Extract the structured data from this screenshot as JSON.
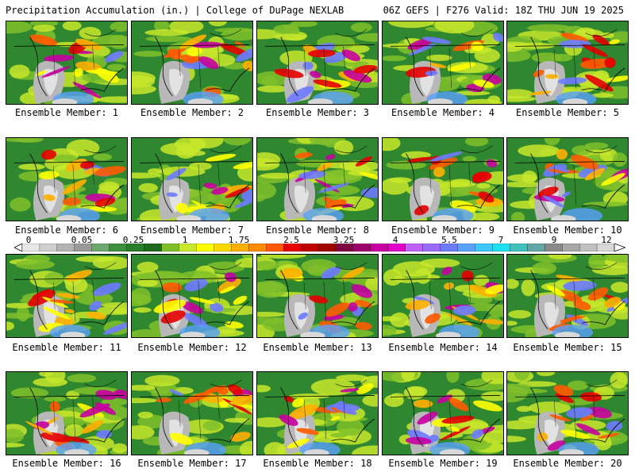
{
  "header": {
    "left_title": "Precipitation Accumulation (in.) | College of DuPage NEXLAB",
    "right_title": "06Z GEFS | F276 Valid: 18Z THU JUN 19 2025"
  },
  "members": [
    "Ensemble Member: 1",
    "Ensemble Member: 2",
    "Ensemble Member: 3",
    "Ensemble Member: 4",
    "Ensemble Member: 5",
    "Ensemble Member: 6",
    "Ensemble Member: 7",
    "Ensemble Member: 8",
    "Ensemble Member: 9",
    "Ensemble Member: 10",
    "Ensemble Member: 11",
    "Ensemble Member: 12",
    "Ensemble Member: 13",
    "Ensemble Member: 14",
    "Ensemble Member: 15",
    "Ensemble Member: 16",
    "Ensemble Member: 17",
    "Ensemble Member: 18",
    "Ensemble Member: 19",
    "Ensemble Member: 20"
  ],
  "legend": {
    "tick_labels": [
      "0",
      "0.05",
      "0.25",
      "1",
      "1.75",
      "2.5",
      "3.25",
      "4",
      "5.5",
      "7",
      "9",
      "12"
    ],
    "colors": [
      "#e8e8e8",
      "#cfcfcf",
      "#b4b4b4",
      "#9a9a9a",
      "#6fa86f",
      "#3f8f3f",
      "#2a7d2a",
      "#1f6b1f",
      "#7fbf2a",
      "#c8e82a",
      "#ffff00",
      "#ffd800",
      "#ffb000",
      "#ff8c00",
      "#ff5a00",
      "#e60000",
      "#c00000",
      "#a00000",
      "#800040",
      "#a0006e",
      "#c800a0",
      "#e000c8",
      "#c060ff",
      "#9b6bff",
      "#6e7bff",
      "#5aa0ff",
      "#3cc8ff",
      "#1ee0f0",
      "#40c0c0",
      "#60a8a8",
      "#8a8a8a",
      "#a8a8a8",
      "#c0c0c0",
      "#d8d8d8"
    ]
  }
}
